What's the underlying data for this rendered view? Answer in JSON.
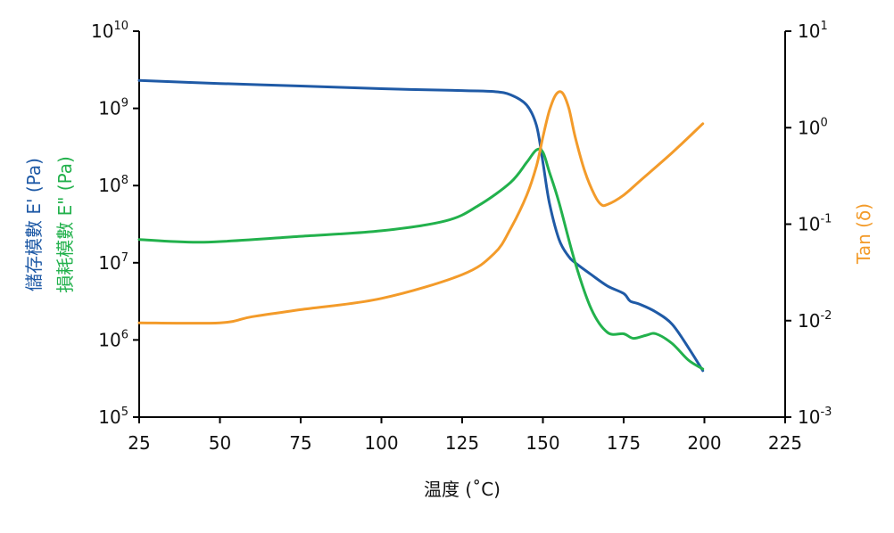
{
  "chart_data": {
    "type": "line",
    "xlabel": "温度 (˚C)",
    "x_ticks": [
      "25",
      "50",
      "75",
      "100",
      "125",
      "150",
      "175",
      "200",
      "225"
    ],
    "xlim": [
      25,
      225
    ],
    "left_axis": {
      "scale": "log",
      "ylim": [
        100000,
        10000000000
      ],
      "tick_base": "10",
      "tick_exponents": [
        "5",
        "6",
        "7",
        "8",
        "9",
        "10"
      ],
      "labels": [
        {
          "text": "儲存模數 E' (Pa)",
          "color": "#1f5aa6"
        },
        {
          "text": "損耗模數 E\" (Pa)",
          "color": "#22b14c"
        }
      ]
    },
    "right_axis": {
      "scale": "log",
      "ylim": [
        0.001,
        10
      ],
      "tick_base": "10",
      "tick_exponents": [
        "-3",
        "-2",
        "-1",
        "0",
        "1"
      ],
      "label": {
        "text": "Tan (δ)",
        "color": "#f39b2a"
      }
    },
    "grid": false,
    "series": [
      {
        "color": "#1f5aa6",
        "axis": "left",
        "x": [
          25,
          50,
          75,
          100,
          125,
          135,
          140,
          145,
          148,
          150,
          152,
          155,
          158,
          160,
          165,
          170,
          175,
          177,
          180,
          185,
          190,
          195,
          199.5
        ],
        "y": [
          2300000000,
          2100000000,
          1950000000,
          1800000000,
          1700000000,
          1650000000,
          1500000000,
          1100000000,
          600000000,
          200000000,
          60000000,
          20000000,
          12000000,
          10000000,
          7000000,
          5000000,
          4000000,
          3200000,
          2900000,
          2300000,
          1600000,
          800000,
          400000
        ]
      },
      {
        "color": "#22b14c",
        "axis": "left",
        "x": [
          25,
          45,
          75,
          100,
          120,
          130,
          140,
          145,
          148,
          150,
          152,
          155,
          160,
          165,
          170,
          175,
          178,
          182,
          185,
          190,
          195,
          199.5
        ],
        "y": [
          20000000,
          18500000,
          22000000,
          26000000,
          35000000,
          55000000,
          110000000,
          200000000,
          290000000,
          270000000,
          150000000,
          60000000,
          10000000,
          2500000,
          1250000,
          1200000,
          1050000,
          1150000,
          1200000,
          900000,
          550000,
          420000
        ]
      },
      {
        "color": "#f39b2a",
        "axis": "right",
        "x": [
          25,
          50,
          60,
          75,
          100,
          125,
          135,
          140,
          145,
          148,
          150,
          152,
          154,
          156,
          158,
          160,
          163,
          166,
          168,
          170,
          175,
          180,
          190,
          199.5
        ],
        "y": [
          0.0095,
          0.0095,
          0.011,
          0.013,
          0.017,
          0.03,
          0.05,
          0.09,
          0.2,
          0.4,
          0.8,
          1.5,
          2.2,
          2.3,
          1.6,
          0.8,
          0.35,
          0.2,
          0.16,
          0.16,
          0.2,
          0.28,
          0.55,
          1.1
        ]
      }
    ]
  }
}
